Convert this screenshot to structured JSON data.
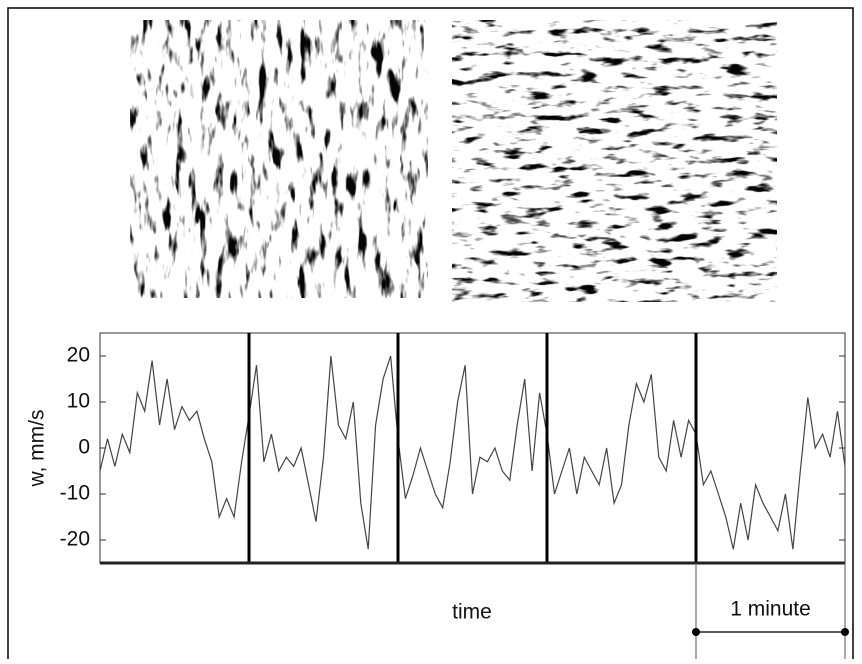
{
  "chart_data": {
    "type": "line",
    "y_label": "w, mm/s",
    "x_label": "time",
    "xlim": [
      0,
      5
    ],
    "ylim": [
      -25,
      25
    ],
    "yticks": [
      -20,
      -10,
      0,
      10,
      20
    ],
    "dividers": [
      1,
      2,
      3,
      4
    ],
    "scale_bar": {
      "label": "1 minute",
      "length": 1
    },
    "color": "#444444",
    "x": [
      0,
      0.05,
      0.1,
      0.15,
      0.2,
      0.25,
      0.3,
      0.35,
      0.4,
      0.45,
      0.5,
      0.55,
      0.6,
      0.65,
      0.7,
      0.75,
      0.8,
      0.85,
      0.9,
      0.95,
      1,
      1.05,
      1.1,
      1.15,
      1.2,
      1.25,
      1.3,
      1.35,
      1.4,
      1.45,
      1.5,
      1.55,
      1.6,
      1.65,
      1.7,
      1.75,
      1.8,
      1.85,
      1.9,
      1.95,
      2,
      2.05,
      2.1,
      2.15,
      2.2,
      2.25,
      2.3,
      2.35,
      2.4,
      2.45,
      2.5,
      2.55,
      2.6,
      2.65,
      2.7,
      2.75,
      2.8,
      2.85,
      2.9,
      2.95,
      3,
      3.05,
      3.1,
      3.15,
      3.2,
      3.25,
      3.3,
      3.35,
      3.4,
      3.45,
      3.5,
      3.55,
      3.6,
      3.65,
      3.7,
      3.75,
      3.8,
      3.85,
      3.9,
      3.95,
      4,
      4.05,
      4.1,
      4.15,
      4.2,
      4.25,
      4.3,
      4.35,
      4.4,
      4.45,
      4.5,
      4.55,
      4.6,
      4.65,
      4.7,
      4.75,
      4.8,
      4.85,
      4.9,
      4.95,
      5
    ],
    "values": [
      -5,
      2,
      -4,
      3,
      -1,
      12,
      8,
      19,
      5,
      15,
      4,
      9,
      6,
      8,
      2,
      -3,
      -15,
      -11,
      -15,
      -3,
      7,
      18,
      -3,
      3,
      -5,
      -2,
      -4,
      0,
      -8,
      -16,
      -2,
      20,
      5,
      2,
      10,
      -12,
      -22,
      5,
      15,
      20,
      2,
      -11,
      -6,
      0,
      -5,
      -10,
      -13,
      -3,
      10,
      18,
      -10,
      -2,
      -3,
      0,
      -5,
      -7,
      5,
      15,
      -5,
      12,
      3,
      -10,
      -5,
      0,
      -10,
      -2,
      -5,
      -8,
      0,
      -12,
      -8,
      5,
      14,
      10,
      16,
      -2,
      -5,
      6,
      -2,
      6,
      3,
      -8,
      -5,
      -10,
      -15,
      -22,
      -12,
      -20,
      -8,
      -12,
      -15,
      -18,
      -10,
      -22,
      -5,
      11,
      0,
      3,
      -2,
      8,
      -4
    ]
  }
}
